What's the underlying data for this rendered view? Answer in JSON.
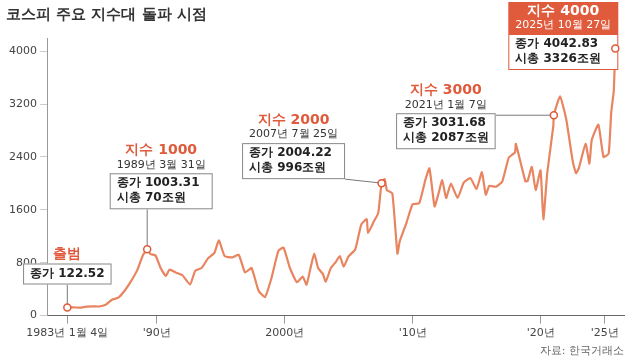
{
  "chart_data": {
    "type": "line",
    "title": "코스피 주요 지수대 돌파 시점",
    "source": "자료: 한국거래소",
    "color": "#e8845f",
    "grid": false,
    "x": [
      1983.01,
      1983.5,
      1984.0,
      1984.5,
      1985.0,
      1985.5,
      1986.0,
      1986.5,
      1987.0,
      1987.5,
      1988.0,
      1988.5,
      1988.9,
      1989.25,
      1989.5,
      1989.9,
      1990.3,
      1990.7,
      1991.0,
      1991.5,
      1992.0,
      1992.6,
      1993.0,
      1993.5,
      1994.0,
      1994.5,
      1994.85,
      1995.3,
      1995.9,
      1996.4,
      1996.9,
      1997.4,
      1997.95,
      1998.45,
      1998.95,
      1999.5,
      1999.9,
      2000.4,
      2000.95,
      2001.4,
      2001.7,
      2001.98,
      2002.3,
      2002.6,
      2002.98,
      2003.2,
      2003.6,
      2003.98,
      2004.3,
      2004.6,
      2004.98,
      2005.5,
      2005.98,
      2006.4,
      2006.5,
      2006.98,
      2007.3,
      2007.56,
      2007.8,
      2007.98,
      2008.4,
      2008.8,
      2008.98,
      2009.5,
      2009.98,
      2010.5,
      2010.98,
      2011.3,
      2011.7,
      2011.98,
      2012.3,
      2012.6,
      2012.98,
      2013.5,
      2013.98,
      2014.5,
      2014.98,
      2015.4,
      2015.7,
      2015.98,
      2016.5,
      2016.98,
      2017.5,
      2017.98,
      2018.05,
      2018.8,
      2018.98,
      2019.3,
      2019.6,
      2019.98,
      2020.2,
      2020.5,
      2020.98,
      2021.02,
      2021.5,
      2021.98,
      2022.5,
      2022.75,
      2022.98,
      2023.5,
      2023.8,
      2023.98,
      2024.5,
      2024.9,
      2025.3,
      2025.5,
      2025.7,
      2025.82
    ],
    "values": [
      122.52,
      125,
      120,
      135,
      140,
      138,
      163,
      240,
      272,
      380,
      525,
      700,
      907,
      1003.31,
      930,
      909,
      720,
      600,
      696,
      650,
      610,
      470,
      678,
      720,
      866,
      950,
      1138,
      900,
      882,
      920,
      651,
      720,
      376,
      280,
      562,
      980,
      1028,
      720,
      504,
      590,
      468,
      693,
      937,
      720,
      627,
      515,
      720,
      810,
      900,
      740,
      896,
      1000,
      1379,
      1460,
      1250,
      1434,
      1550,
      2004.22,
      2064,
      1897,
      1850,
      938,
      1124,
      1400,
      1683,
      1700,
      2051,
      2228,
      1652,
      1826,
      2049,
      1780,
      1997,
      1780,
      2011,
      2080,
      1916,
      2170,
      1830,
      1961,
      1950,
      2026,
      2390,
      2467,
      2598,
      2030,
      2041,
      2250,
      1900,
      2198,
      1457,
      2150,
      2873,
      3031.68,
      3316,
      2978,
      2330,
      2155,
      2236,
      2600,
      2300,
      2655,
      2890,
      2400,
      2450,
      3070,
      3400,
      4042.83
    ],
    "xlim": [
      1981.5,
      2026.5
    ],
    "xticks": [
      {
        "value": 1983,
        "label": "1983년 1월 4일"
      },
      {
        "value": 1990,
        "label": "'90년"
      },
      {
        "value": 2000,
        "label": "2000년"
      },
      {
        "value": 2010,
        "label": "'10년"
      },
      {
        "value": 2020,
        "label": "'20년"
      },
      {
        "value": 2025,
        "label": "'25년"
      }
    ],
    "ylim": [
      0,
      4200
    ],
    "yticks": [
      0,
      800,
      1600,
      2400,
      3200,
      4000
    ],
    "annotations": [
      {
        "x": 1983.01,
        "y": 122.52,
        "label": "출범",
        "lines": [
          "종가 122.52"
        ]
      },
      {
        "x": 1989.25,
        "y": 1003.31,
        "label": "지수 1000",
        "date": "1989년 3월 31일",
        "lines": [
          "종가 1003.31",
          "시총 70조원"
        ]
      },
      {
        "x": 2007.56,
        "y": 2004.22,
        "label": "지수 2000",
        "date": "2007년 7월 25일",
        "lines": [
          "종가 2004.22",
          "시총 996조원"
        ]
      },
      {
        "x": 2021.02,
        "y": 3031.68,
        "label": "지수 3000",
        "date": "2021년 1월 7일",
        "lines": [
          "종가 3031.68",
          "시총 2087조원"
        ]
      },
      {
        "x": 2025.82,
        "y": 4042.83,
        "label": "지수 4000",
        "date": "2025년 10월 27일",
        "lines": [
          "종가 4042.83",
          "시총 3326조원"
        ]
      }
    ]
  }
}
